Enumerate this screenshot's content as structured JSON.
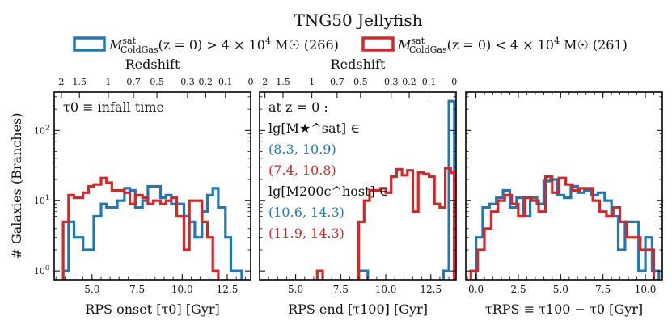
{
  "figure": {
    "title": "TNG50 Jellyfish",
    "legend": [
      {
        "label": "M_ColdGas^sat(z=0) > 4 × 10^4 M☉ (266)",
        "sym": "M",
        "sup": "sat",
        "sub": "ColdGas",
        "rest": "(z = 0) > 4 × 10",
        "exp": "4",
        "unit": " M☉ (266)",
        "color": "#1f77b4"
      },
      {
        "label": "M_ColdGas^sat(z=0) < 4 × 10^4 M☉ (261)",
        "sym": "M",
        "sup": "sat",
        "sub": "ColdGas",
        "rest": "(z = 0) < 4 × 10",
        "exp": "4",
        "unit": " M☉ (261)",
        "color": "#d62728"
      }
    ],
    "ylabel": "# Galaxies (Branches)",
    "redshift_label": "Redshift"
  },
  "chart_data": [
    {
      "type": "bar",
      "histtype": "step",
      "xlabel": "RPS onset [τ0] [Gyr]",
      "xlim": [
        2.9,
        13.8
      ],
      "ylim": [
        0.75,
        350
      ],
      "yscale": "log",
      "xticks": [
        5.0,
        7.5,
        10.0,
        12.5
      ],
      "xtick_labels": [
        "5.0",
        "7.5",
        "10.0",
        "12.5"
      ],
      "redshift_axis": true,
      "redshift_ticks": [
        {
          "label": "2",
          "t": 3.3
        },
        {
          "label": "1.5",
          "t": 4.3
        },
        {
          "label": "1",
          "t": 5.9
        },
        {
          "label": "0.7",
          "t": 7.3
        },
        {
          "label": "0.5",
          "t": 8.6
        },
        {
          "label": "0.3",
          "t": 10.3
        },
        {
          "label": "0.2",
          "t": 11.3
        },
        {
          "label": "0.1",
          "t": 12.4
        },
        {
          "label": "0",
          "t": 13.8
        }
      ],
      "annotations": [
        {
          "text": "τ0 ≡ infall time",
          "color": "#111"
        }
      ],
      "series": [
        {
          "name": "M_ColdGas^sat(z=0) > 4 × 10^4 M☉ (266)",
          "color": "#1f77b4",
          "bins": [
            3.4,
            3.7,
            4.0,
            4.5,
            4.8,
            5.1,
            5.5,
            5.8,
            6.1,
            6.4,
            6.8,
            7.1,
            7.4,
            7.8,
            8.1,
            8.4,
            8.8,
            9.1,
            9.4,
            9.7,
            10.1,
            10.4,
            10.7,
            11.1,
            11.4,
            11.7,
            12.0,
            12.4,
            12.7,
            13.0,
            13.3
          ],
          "values": [
            1,
            5,
            3,
            2,
            2,
            6,
            9,
            8,
            8,
            10,
            15,
            14,
            8,
            10,
            16,
            16,
            11,
            12,
            9,
            9,
            6,
            5,
            3,
            7,
            12,
            15,
            8,
            3,
            1,
            1
          ]
        },
        {
          "name": "M_ColdGas^sat(z=0) < 4 × 10^4 M☉ (261)",
          "color": "#d62728",
          "bins": [
            3.4,
            3.7,
            4.0,
            4.5,
            4.8,
            5.1,
            5.5,
            5.8,
            6.1,
            6.4,
            6.8,
            7.1,
            7.4,
            7.8,
            8.1,
            8.4,
            8.8,
            9.1,
            9.4,
            9.7,
            10.1,
            10.4,
            10.7,
            11.1,
            11.4,
            11.7,
            12.0,
            12.4,
            12.7,
            13.0,
            13.3
          ],
          "values": [
            5,
            12,
            11,
            13,
            16,
            17,
            21,
            18,
            14,
            14,
            13,
            9,
            12,
            11,
            9,
            10,
            9,
            10,
            11,
            6,
            2,
            10,
            10,
            5,
            3,
            1,
            0,
            0,
            0,
            0
          ]
        }
      ]
    },
    {
      "type": "bar",
      "histtype": "step",
      "xlabel": "RPS end [τ100] [Gyr]",
      "xlim": [
        3.0,
        13.9
      ],
      "ylim": [
        0.75,
        350
      ],
      "yscale": "log",
      "xticks": [
        5.0,
        7.5,
        10.0,
        12.5
      ],
      "xtick_labels": [
        "5.0",
        "7.5",
        "10.0",
        "12.5"
      ],
      "redshift_axis": true,
      "redshift_ticks": [
        {
          "label": "2",
          "t": 3.3
        },
        {
          "label": "1.5",
          "t": 4.3
        },
        {
          "label": "1",
          "t": 5.9
        },
        {
          "label": "0.7",
          "t": 7.3
        },
        {
          "label": "0.5",
          "t": 8.6
        },
        {
          "label": "0.3",
          "t": 10.3
        },
        {
          "label": "0.2",
          "t": 11.3
        },
        {
          "label": "0.1",
          "t": 12.4
        },
        {
          "label": "0",
          "t": 13.8
        }
      ],
      "annotations": [
        {
          "text": "at z = 0 :",
          "color": "#111"
        },
        {
          "text": "lg[M★^sat] ∈",
          "color": "#111"
        },
        {
          "text": "(8.3, 10.9)",
          "color": "#1f77b4"
        },
        {
          "text": "(7.4, 10.8)",
          "color": "#d62728"
        },
        {
          "text": "lg[M200c^host] ∈",
          "color": "#111"
        },
        {
          "text": "(10.6, 14.3)",
          "color": "#1f77b4"
        },
        {
          "text": "(11.9, 14.3)",
          "color": "#d62728"
        }
      ],
      "series": [
        {
          "name": "M_ColdGas^sat(z=0) > 4 × 10^4 M☉ (266)",
          "color": "#1f77b4",
          "bins": [
            8.5,
            9.0,
            9.3,
            9.6,
            9.9,
            10.2,
            10.5,
            10.8,
            11.1,
            11.4,
            11.7,
            12.0,
            12.3,
            12.6,
            12.9,
            13.2,
            13.5,
            13.8
          ],
          "values": [
            1,
            0,
            0,
            0,
            0,
            0,
            0,
            0,
            0,
            0,
            0,
            0,
            0,
            0,
            0,
            1,
            260
          ]
        },
        {
          "name": "M_ColdGas^sat(z=0) < 4 × 10^4 M☉ (261)",
          "color": "#d62728",
          "bins": [
            6.2,
            6.5,
            8.5,
            8.8,
            9.1,
            9.4,
            9.7,
            10.0,
            10.3,
            10.6,
            10.9,
            11.2,
            11.5,
            11.8,
            12.1,
            12.4,
            12.7,
            13.0,
            13.3,
            13.6,
            13.8
          ],
          "values": [
            1,
            0,
            5,
            10,
            14,
            14,
            15,
            13,
            22,
            28,
            23,
            27,
            7,
            25,
            24,
            22,
            9,
            8,
            29,
            25
          ]
        }
      ]
    },
    {
      "type": "bar",
      "histtype": "step",
      "xlabel": "τRPS ≡ τ100 − τ0 [Gyr]",
      "xlim": [
        -0.6,
        11.0
      ],
      "ylim": [
        0.75,
        350
      ],
      "yscale": "log",
      "xticks": [
        0.0,
        2.5,
        5.0,
        7.5,
        10.0
      ],
      "xtick_labels": [
        "0.0",
        "2.5",
        "5.0",
        "7.5",
        "10.0"
      ],
      "redshift_axis": false,
      "annotations": [],
      "series": [
        {
          "name": "M_ColdGas^sat(z=0) > 4 × 10^4 M☉ (266)",
          "color": "#1f77b4",
          "bins": [
            0.0,
            0.4,
            0.8,
            1.2,
            1.6,
            2.0,
            2.4,
            2.8,
            3.2,
            3.6,
            4.0,
            4.4,
            4.8,
            5.2,
            5.6,
            6.0,
            6.4,
            6.8,
            7.2,
            7.6,
            8.0,
            8.4,
            8.8,
            9.2,
            9.6,
            10.0,
            10.4,
            10.8
          ],
          "values": [
            3,
            8,
            9,
            11,
            14,
            8,
            11,
            6,
            11,
            9,
            19,
            20,
            12,
            11,
            16,
            13,
            14,
            12,
            13,
            10,
            6,
            2,
            5,
            5,
            1,
            3,
            1
          ]
        },
        {
          "name": "M_ColdGas^sat(z=0) < 4 × 10^4 M☉ (261)",
          "color": "#d62728",
          "bins": [
            -0.3,
            0.1,
            0.5,
            0.9,
            1.3,
            1.7,
            2.1,
            2.5,
            2.9,
            3.3,
            3.7,
            4.1,
            4.5,
            4.9,
            5.3,
            5.7,
            6.1,
            6.5,
            6.9,
            7.3,
            7.7,
            8.1,
            8.5,
            8.9,
            9.3,
            9.7,
            10.1,
            10.5
          ],
          "values": [
            1,
            2,
            4,
            7,
            10,
            12,
            9,
            6,
            11,
            10,
            7,
            22,
            13,
            21,
            17,
            14,
            15,
            15,
            10,
            7,
            6,
            8,
            5,
            3,
            3,
            2,
            2
          ]
        }
      ]
    }
  ]
}
